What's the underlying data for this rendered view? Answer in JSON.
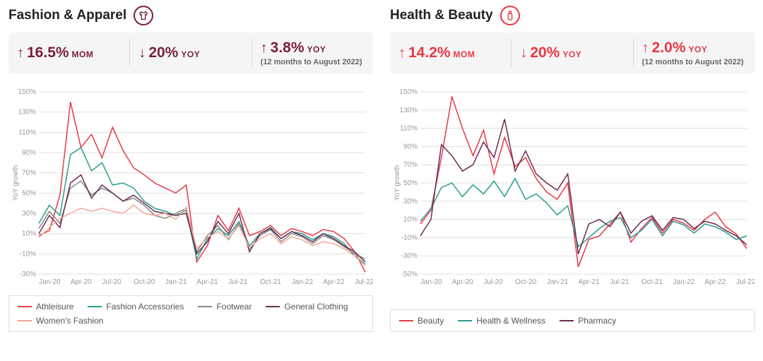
{
  "panels": [
    {
      "title": "Fashion & Apparel",
      "icon_color": "#7a1f3d",
      "icon": "shirt",
      "stats": [
        {
          "dir": "up",
          "value": "16.5%",
          "label": "MOM",
          "sub": "",
          "color": "#7a1f3d"
        },
        {
          "dir": "down",
          "value": "20%",
          "label": "YOY",
          "sub": "",
          "color": "#7a1f3d"
        },
        {
          "dir": "up",
          "value": "3.8%",
          "label": "YOY",
          "sub": "(12 months to August 2022)",
          "color": "#7a1f3d"
        }
      ],
      "chart": {
        "type": "line",
        "ylabel": "YoY growth",
        "ylim": [
          -30,
          150
        ],
        "ytick_step": 20,
        "grid_color": "#e0e0e0",
        "background_color": "#ffffff",
        "line_width": 1.5,
        "x_labels": [
          "Jan-20",
          "Apr-20",
          "Jul-20",
          "Oct-20",
          "Jan-21",
          "Apr-21",
          "Jul-21",
          "Oct-21",
          "Jan-22",
          "Apr-22",
          "Jul-22"
        ],
        "x_tick_interval": 3,
        "series": [
          {
            "name": "Athleisure",
            "color": "#e63946",
            "values": [
              8,
              13,
              48,
              140,
              95,
              108,
              85,
              115,
              92,
              75,
              68,
              60,
              55,
              50,
              58,
              -18,
              -2,
              28,
              13,
              35,
              8,
              12,
              18,
              8,
              15,
              12,
              8,
              14,
              12,
              5,
              -8,
              -28
            ]
          },
          {
            "name": "Fashion Accessories",
            "color": "#2a9d8f",
            "values": [
              20,
              38,
              28,
              88,
              95,
              72,
              80,
              58,
              60,
              55,
              42,
              35,
              32,
              28,
              33,
              -15,
              5,
              15,
              8,
              22,
              -2,
              10,
              16,
              5,
              12,
              10,
              4,
              10,
              7,
              0,
              -12,
              -20
            ]
          },
          {
            "name": "Footwear",
            "color": "#888",
            "values": [
              15,
              32,
              20,
              55,
              62,
              48,
              55,
              50,
              42,
              45,
              38,
              28,
              25,
              30,
              35,
              -8,
              8,
              18,
              4,
              20,
              -5,
              8,
              14,
              2,
              10,
              7,
              0,
              8,
              4,
              -3,
              -10,
              -15
            ]
          },
          {
            "name": "General Clothing",
            "color": "#6b2c4f",
            "values": [
              10,
              28,
              16,
              60,
              68,
              45,
              58,
              50,
              42,
              48,
              40,
              32,
              30,
              28,
              30,
              -10,
              2,
              22,
              10,
              30,
              -8,
              10,
              15,
              5,
              12,
              8,
              2,
              10,
              5,
              -2,
              -8,
              -18
            ]
          },
          {
            "name": "Women's Fashion",
            "color": "#f4a896",
            "values": [
              6,
              16,
              25,
              30,
              35,
              32,
              35,
              32,
              30,
              38,
              30,
              28,
              30,
              24,
              36,
              -5,
              6,
              12,
              5,
              18,
              -4,
              5,
              10,
              0,
              7,
              4,
              -2,
              2,
              0,
              -5,
              -12,
              -22
            ]
          }
        ]
      }
    },
    {
      "title": "Health & Beauty",
      "icon_color": "#e63946",
      "icon": "bottle",
      "stats": [
        {
          "dir": "up",
          "value": "14.2%",
          "label": "MOM",
          "sub": "",
          "color": "#e63946"
        },
        {
          "dir": "down",
          "value": "20%",
          "label": "YOY",
          "sub": "",
          "color": "#e63946"
        },
        {
          "dir": "up",
          "value": "2.0%",
          "label": "YOY",
          "sub": "(12 months to August 2022)",
          "color": "#e63946"
        }
      ],
      "chart": {
        "type": "line",
        "ylabel": "YoY growth",
        "ylim": [
          -50,
          150
        ],
        "ytick_step": 20,
        "grid_color": "#e0e0e0",
        "background_color": "#ffffff",
        "line_width": 1.5,
        "x_labels": [
          "Jan-20",
          "Apr-20",
          "Jul-20",
          "Oct-20",
          "Jan-21",
          "Apr-21",
          "Jul-21",
          "Oct-21",
          "Jan-22",
          "Apr-22",
          "Jul-22"
        ],
        "x_tick_interval": 3,
        "series": [
          {
            "name": "Beauty",
            "color": "#e63946",
            "values": [
              5,
              20,
              78,
              145,
              110,
              80,
              108,
              60,
              100,
              68,
              78,
              55,
              40,
              32,
              50,
              -42,
              -12,
              -8,
              5,
              18,
              -15,
              0,
              12,
              -5,
              10,
              6,
              -2,
              10,
              18,
              2,
              -6,
              -22
            ]
          },
          {
            "name": "Health & Wellness",
            "color": "#2a9d8f",
            "values": [
              8,
              22,
              45,
              50,
              35,
              48,
              38,
              52,
              35,
              55,
              32,
              38,
              28,
              15,
              25,
              -20,
              -10,
              0,
              8,
              12,
              -10,
              -2,
              10,
              -8,
              8,
              4,
              -5,
              5,
              2,
              -4,
              -12,
              -8
            ]
          },
          {
            "name": "Pharmacy",
            "color": "#6b2c4f",
            "values": [
              -8,
              10,
              92,
              80,
              63,
              70,
              95,
              78,
              120,
              63,
              85,
              60,
              50,
              42,
              60,
              -28,
              5,
              10,
              2,
              18,
              -5,
              8,
              14,
              -2,
              12,
              10,
              0,
              8,
              5,
              -2,
              -8,
              -18
            ]
          }
        ]
      }
    }
  ]
}
